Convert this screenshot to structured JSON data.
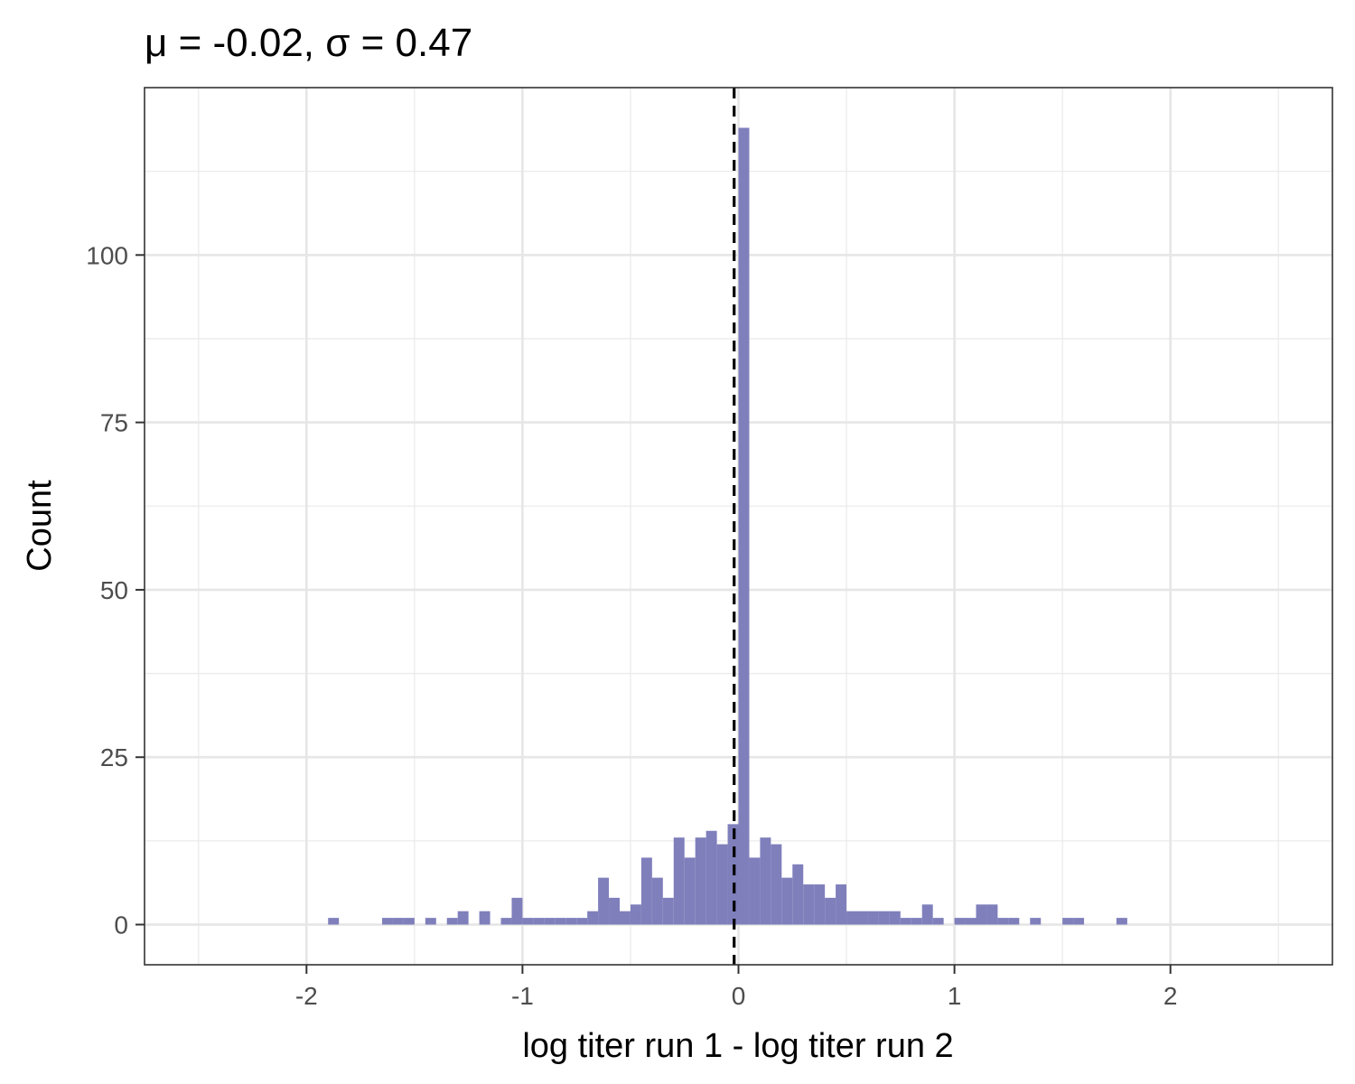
{
  "chart_data": {
    "type": "histogram",
    "title": "μ = -0.02, σ = 0.47",
    "xlabel": "log titer run 1 - log titer run 2",
    "ylabel": "Count",
    "xlim": [
      -2.75,
      2.75
    ],
    "ylim": [
      -6,
      125
    ],
    "x_ticks": [
      -2,
      -1,
      0,
      1,
      2
    ],
    "x_tick_labels": [
      "-2",
      "-1",
      "0",
      "1",
      "2"
    ],
    "y_ticks": [
      0,
      25,
      50,
      75,
      100
    ],
    "y_tick_labels": [
      "0",
      "25",
      "50",
      "75",
      "100"
    ],
    "bin_width": 0.05,
    "bins": [
      {
        "x0": -1.9,
        "x1": -1.85,
        "count": 1
      },
      {
        "x0": -1.65,
        "x1": -1.6,
        "count": 1
      },
      {
        "x0": -1.6,
        "x1": -1.55,
        "count": 1
      },
      {
        "x0": -1.55,
        "x1": -1.5,
        "count": 1
      },
      {
        "x0": -1.45,
        "x1": -1.4,
        "count": 1
      },
      {
        "x0": -1.35,
        "x1": -1.3,
        "count": 1
      },
      {
        "x0": -1.3,
        "x1": -1.25,
        "count": 2
      },
      {
        "x0": -1.2,
        "x1": -1.15,
        "count": 2
      },
      {
        "x0": -1.1,
        "x1": -1.05,
        "count": 1
      },
      {
        "x0": -1.05,
        "x1": -1.0,
        "count": 4
      },
      {
        "x0": -1.0,
        "x1": -0.95,
        "count": 1
      },
      {
        "x0": -0.95,
        "x1": -0.9,
        "count": 1
      },
      {
        "x0": -0.9,
        "x1": -0.85,
        "count": 1
      },
      {
        "x0": -0.85,
        "x1": -0.8,
        "count": 1
      },
      {
        "x0": -0.8,
        "x1": -0.75,
        "count": 1
      },
      {
        "x0": -0.75,
        "x1": -0.7,
        "count": 1
      },
      {
        "x0": -0.7,
        "x1": -0.65,
        "count": 2
      },
      {
        "x0": -0.65,
        "x1": -0.6,
        "count": 7
      },
      {
        "x0": -0.6,
        "x1": -0.55,
        "count": 4
      },
      {
        "x0": -0.55,
        "x1": -0.5,
        "count": 2
      },
      {
        "x0": -0.5,
        "x1": -0.45,
        "count": 3
      },
      {
        "x0": -0.45,
        "x1": -0.4,
        "count": 10
      },
      {
        "x0": -0.4,
        "x1": -0.35,
        "count": 7
      },
      {
        "x0": -0.35,
        "x1": -0.3,
        "count": 4
      },
      {
        "x0": -0.3,
        "x1": -0.25,
        "count": 13
      },
      {
        "x0": -0.25,
        "x1": -0.2,
        "count": 10
      },
      {
        "x0": -0.2,
        "x1": -0.15,
        "count": 13
      },
      {
        "x0": -0.15,
        "x1": -0.1,
        "count": 14
      },
      {
        "x0": -0.1,
        "x1": -0.05,
        "count": 12
      },
      {
        "x0": -0.05,
        "x1": 0.0,
        "count": 15
      },
      {
        "x0": 0.0,
        "x1": 0.05,
        "count": 119
      },
      {
        "x0": 0.05,
        "x1": 0.1,
        "count": 10
      },
      {
        "x0": 0.1,
        "x1": 0.15,
        "count": 13
      },
      {
        "x0": 0.15,
        "x1": 0.2,
        "count": 12
      },
      {
        "x0": 0.2,
        "x1": 0.25,
        "count": 7
      },
      {
        "x0": 0.25,
        "x1": 0.3,
        "count": 9
      },
      {
        "x0": 0.3,
        "x1": 0.35,
        "count": 6
      },
      {
        "x0": 0.35,
        "x1": 0.4,
        "count": 6
      },
      {
        "x0": 0.4,
        "x1": 0.45,
        "count": 4
      },
      {
        "x0": 0.45,
        "x1": 0.5,
        "count": 6
      },
      {
        "x0": 0.5,
        "x1": 0.55,
        "count": 2
      },
      {
        "x0": 0.55,
        "x1": 0.6,
        "count": 2
      },
      {
        "x0": 0.6,
        "x1": 0.65,
        "count": 2
      },
      {
        "x0": 0.65,
        "x1": 0.7,
        "count": 2
      },
      {
        "x0": 0.7,
        "x1": 0.75,
        "count": 2
      },
      {
        "x0": 0.75,
        "x1": 0.8,
        "count": 1
      },
      {
        "x0": 0.8,
        "x1": 0.85,
        "count": 1
      },
      {
        "x0": 0.85,
        "x1": 0.9,
        "count": 3
      },
      {
        "x0": 0.9,
        "x1": 0.95,
        "count": 1
      },
      {
        "x0": 1.0,
        "x1": 1.05,
        "count": 1
      },
      {
        "x0": 1.05,
        "x1": 1.1,
        "count": 1
      },
      {
        "x0": 1.1,
        "x1": 1.15,
        "count": 3
      },
      {
        "x0": 1.15,
        "x1": 1.2,
        "count": 3
      },
      {
        "x0": 1.2,
        "x1": 1.25,
        "count": 1
      },
      {
        "x0": 1.25,
        "x1": 1.3,
        "count": 1
      },
      {
        "x0": 1.35,
        "x1": 1.4,
        "count": 1
      },
      {
        "x0": 1.5,
        "x1": 1.55,
        "count": 1
      },
      {
        "x0": 1.55,
        "x1": 1.6,
        "count": 1
      },
      {
        "x0": 1.75,
        "x1": 1.8,
        "count": 1
      }
    ],
    "reference_line": {
      "orientation": "vertical",
      "x": -0.02,
      "style": "dashed",
      "color": "#000000"
    },
    "bar_color": "#7f7fbc",
    "grid": true,
    "legend": "none"
  }
}
